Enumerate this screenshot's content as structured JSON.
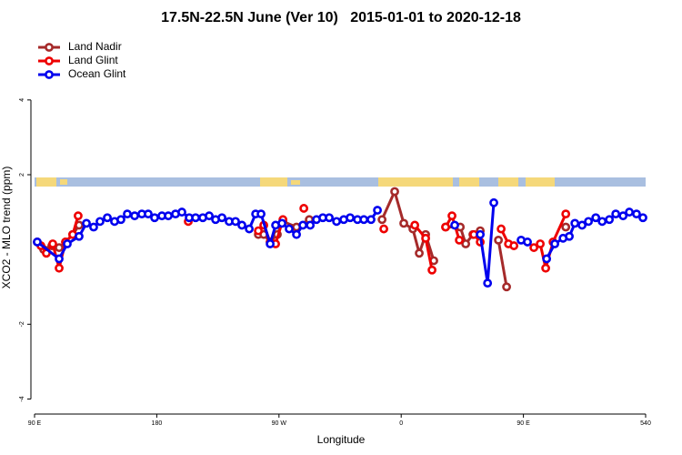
{
  "chart_data": {
    "type": "line",
    "title": "17.5N-22.5N June (Ver 10)   2015-01-01 to 2020-12-18",
    "x_label": "Longitude",
    "y_label": "XCO2 - MLO trend (ppm)",
    "xlim": [
      90,
      540
    ],
    "ylim": [
      -4.5,
      5.7
    ],
    "xticks": [
      {
        "value": 90,
        "label": "90 E"
      },
      180,
      {
        "value": 270,
        "label": "90 W"
      },
      {
        "value": 360,
        "label": "0"
      },
      {
        "value": 450,
        "label": "90 E"
      },
      540
    ],
    "yticks": [
      -4,
      -2,
      2,
      4
    ],
    "legend": "top-left",
    "series": [
      {
        "name": "Land Nadir",
        "color": "#a52a2a",
        "x": [
          92,
          96.7,
          102.7,
          108.1,
          112.8,
          118.1,
          122.8,
          null,
          254.8,
          258.8,
          263.5,
          268.8,
          272.9,
          282.9,
          292.3,
          null,
          345.9,
          355.2,
          361.9,
          368.6,
          373.3,
          378,
          384,
          null,
          392.7,
          403.5,
          407.5,
          412.8,
          418.2,
          null,
          431.6,
          437.6,
          null,
          481.2
        ],
        "values": [
          0.2,
          0,
          0.1,
          0.05,
          0.2,
          0.4,
          0.65,
          null,
          0.4,
          0.4,
          0.2,
          0.4,
          0.75,
          0.6,
          0.8,
          null,
          0.8,
          1.55,
          0.7,
          0.55,
          -0.1,
          0.4,
          -0.3,
          null,
          0.6,
          0.6,
          0.15,
          0.4,
          0.5,
          null,
          0.25,
          -1.0,
          null,
          0.6
        ]
      },
      {
        "name": "Land Glint",
        "color": "#ee0000",
        "x": [
          94.7,
          98.7,
          103.4,
          108.1,
          112.8,
          118.1,
          122.1,
          null,
          203.2,
          null,
          254.8,
          258.8,
          263.5,
          267.5,
          272.9,
          null,
          288.3,
          null,
          347.2,
          null,
          370,
          378,
          382.7,
          null,
          392.7,
          397.4,
          402.8,
          null,
          413.5,
          418.2,
          null,
          433.6,
          439,
          443,
          null,
          457.7,
          462.4,
          466.4,
          471.8,
          481.2
        ],
        "values": [
          0.1,
          -0.1,
          0.15,
          -0.5,
          0.2,
          0.4,
          0.9,
          null,
          0.75,
          null,
          0.5,
          0.65,
          0.2,
          0.15,
          0.8,
          null,
          1.1,
          null,
          0.55,
          null,
          0.65,
          0.3,
          -0.55,
          null,
          0.6,
          0.9,
          0.25,
          null,
          0.4,
          0.2,
          null,
          0.55,
          0.15,
          0.1,
          null,
          0.05,
          0.15,
          -0.5,
          0.2,
          0.95
        ]
      },
      {
        "name": "Ocean Glint",
        "color": "#0000ee",
        "x": [
          92,
          108.1,
          114.1,
          122.8,
          128.2,
          133.5,
          138.2,
          143.6,
          148.9,
          153.6,
          158.3,
          163.7,
          169,
          173.7,
          178.4,
          183.8,
          188.5,
          193.8,
          198.5,
          203.9,
          208.6,
          213.9,
          218.6,
          223.3,
          228,
          233.3,
          238,
          242.7,
          248.1,
          252.8,
          256.8,
          263.5,
          267.5,
          272.2,
          277.5,
          282.9,
          287.6,
          293,
          297.6,
          302.3,
          307,
          312.4,
          317.7,
          322.4,
          327.8,
          332.5,
          337.8,
          342.5,
          null,
          399.4,
          null,
          418.2,
          423.6,
          428.2,
          null,
          448.3,
          453,
          null,
          467.1,
          473.1,
          479.2,
          483.8,
          487.9,
          493.2,
          497.9,
          503.3,
          508,
          513.3,
          518,
          523.4,
          528,
          533.3,
          538
        ],
        "values": [
          0.2,
          -0.25,
          0.15,
          0.35,
          0.7,
          0.6,
          0.75,
          0.85,
          0.75,
          0.8,
          0.95,
          0.9,
          0.95,
          0.95,
          0.85,
          0.9,
          0.9,
          0.95,
          1.0,
          0.85,
          0.85,
          0.85,
          0.9,
          0.8,
          0.85,
          0.75,
          0.75,
          0.65,
          0.55,
          0.95,
          0.95,
          0.15,
          0.65,
          0.7,
          0.55,
          0.4,
          0.65,
          0.65,
          0.8,
          0.85,
          0.85,
          0.75,
          0.8,
          0.85,
          0.8,
          0.8,
          0.8,
          1.05,
          null,
          0.65,
          null,
          0.4,
          -0.9,
          1.25,
          null,
          0.25,
          0.2,
          null,
          -0.25,
          0.15,
          0.3,
          0.35,
          0.7,
          0.65,
          0.75,
          0.85,
          0.75,
          0.8,
          0.95,
          0.9,
          1.0,
          0.95,
          0.85
        ]
      }
    ]
  }
}
